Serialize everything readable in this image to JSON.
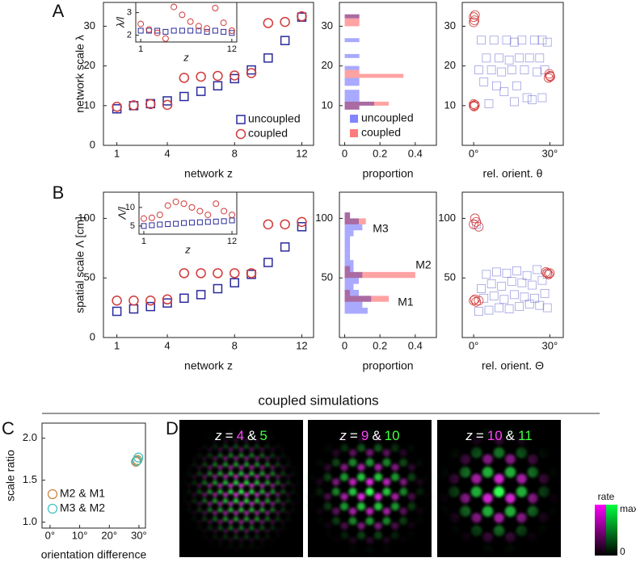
{
  "panel_labels": [
    "A",
    "B",
    "C",
    "D"
  ],
  "section_title": "coupled simulations",
  "chart_data": [
    {
      "type": "scatter",
      "xlabel": "network z",
      "ylabel": "network scale λ",
      "x": [
        1,
        2,
        3,
        4,
        5,
        6,
        7,
        8,
        9,
        10,
        11,
        12
      ],
      "xlim": [
        0.2,
        12.7
      ],
      "xticks": [
        1,
        4,
        8,
        12
      ],
      "ylim": [
        0,
        36
      ],
      "yticks": [
        0,
        10,
        20,
        30
      ],
      "legend": "lower right",
      "series": [
        {
          "name": "uncoupled",
          "color": "#2a2a9c",
          "marker": "square",
          "values": [
            9.2,
            10,
            10.5,
            11.2,
            12.3,
            13.6,
            15,
            16.8,
            19,
            22,
            26.4,
            32.3
          ]
        },
        {
          "name": "coupled",
          "color": "#d23a3a",
          "marker": "circle",
          "values": [
            9.7,
            10.1,
            10.4,
            10.2,
            17,
            17.3,
            17.5,
            17.6,
            18.2,
            30.8,
            31.1,
            32.5
          ]
        }
      ]
    },
    {
      "type": "scatter",
      "xlabel": "z",
      "ylabel": "λ/l",
      "x": [
        1,
        2,
        3,
        4,
        5,
        6,
        7,
        8,
        9,
        10,
        11,
        12
      ],
      "xlim": [
        0.4,
        12.6
      ],
      "xticks": [
        1,
        12
      ],
      "ylim": [
        1.7,
        3.45
      ],
      "yticks": [
        2,
        3
      ],
      "series": [
        {
          "name": "uncoupled",
          "color": "#2a2a9c",
          "marker": "square",
          "values": [
            2.2,
            2.2,
            2.2,
            2.15,
            2.2,
            2.2,
            2.2,
            2.2,
            2.15,
            2.2,
            2.15,
            2.1
          ]
        },
        {
          "name": "coupled",
          "color": "#d23a3a",
          "marker": "circle",
          "values": [
            2.5,
            2.25,
            2.1,
            1.85,
            3.25,
            2.9,
            2.6,
            2.4,
            2.3,
            3.2,
            2.55,
            2.2
          ]
        }
      ]
    },
    {
      "type": "histogram",
      "orientation": "horizontal",
      "xlabel": "proportion",
      "bins": [
        8,
        9,
        10,
        11,
        12,
        13,
        14,
        15,
        16,
        17,
        18,
        19,
        20,
        21,
        22,
        23,
        24,
        25,
        26,
        27,
        28,
        29,
        30,
        31,
        32,
        33,
        34
      ],
      "xlim": [
        -0.03,
        0.52
      ],
      "xticks": [
        0,
        0.2,
        0.4
      ],
      "ylim": [
        0,
        36
      ],
      "yticks": [
        10,
        20,
        30
      ],
      "legend": "lower right",
      "series": [
        {
          "name": "uncoupled",
          "color": "#8484ff",
          "values": [
            0,
            0.083,
            0.167,
            0.083,
            0.083,
            0.083,
            0,
            0.083,
            0.083,
            0,
            0,
            0.083,
            0,
            0,
            0.083,
            0,
            0,
            0,
            0.083,
            0,
            0,
            0,
            0,
            0,
            0.083,
            0
          ]
        },
        {
          "name": "coupled",
          "color": "#ff7a7a",
          "values": [
            0,
            0.083,
            0.25,
            0,
            0,
            0,
            0,
            0,
            0,
            0.333,
            0.083,
            0,
            0,
            0,
            0,
            0,
            0,
            0,
            0,
            0,
            0,
            0,
            0.083,
            0.083,
            0.083,
            0
          ]
        }
      ]
    },
    {
      "type": "scatter",
      "xlabel": "rel. orient. θ",
      "xlim": [
        -4.5,
        35.3
      ],
      "xticks": [
        {
          "value": 0,
          "label": "0°"
        },
        {
          "value": 30,
          "label": "30°"
        }
      ],
      "ylim": [
        0,
        36
      ],
      "yticks": [
        10,
        20,
        30
      ],
      "series": [
        {
          "name": "uncoupled",
          "color": "#5050c8",
          "marker": "square",
          "x": [
            3,
            8,
            13,
            16,
            19,
            24,
            27,
            29,
            5,
            10,
            14,
            18,
            22,
            26,
            2,
            7,
            11,
            15,
            20,
            25,
            28,
            4,
            9,
            12,
            17,
            21,
            23,
            6,
            16,
            27
          ],
          "values": [
            26.5,
            26.5,
            26.5,
            26,
            26.5,
            26.5,
            26.5,
            26,
            22,
            22,
            21.5,
            22,
            22,
            22,
            19,
            19,
            18.5,
            19,
            19,
            18.5,
            19,
            16,
            15,
            13.5,
            15,
            12,
            11.5,
            10.5,
            11,
            12
          ]
        },
        {
          "name": "coupled",
          "color": "#d23a3a",
          "marker": "circle",
          "x": [
            0,
            0.5,
            0,
            0.3,
            29.5,
            30,
            29.8,
            30.2,
            0,
            0.5,
            0.2,
            0
          ],
          "values": [
            32.3,
            32.8,
            31,
            31.5,
            17,
            17.5,
            18,
            17.3,
            10,
            10.2,
            9.8,
            10.4
          ]
        }
      ]
    },
    {
      "type": "scatter",
      "xlabel": "network z",
      "ylabel": "spatial scale Λ [cm]",
      "x": [
        1,
        2,
        3,
        4,
        5,
        6,
        7,
        8,
        9,
        10,
        11,
        12
      ],
      "xlim": [
        0.2,
        12.7
      ],
      "xticks": [
        1,
        4,
        8,
        12
      ],
      "ylim": [
        0,
        122
      ],
      "yticks": [
        0,
        50,
        100
      ],
      "series": [
        {
          "name": "uncoupled",
          "color": "#2a2a9c",
          "marker": "square",
          "values": [
            22,
            24,
            26,
            29,
            33,
            36,
            41,
            46,
            53,
            63,
            76,
            93
          ]
        },
        {
          "name": "coupled",
          "color": "#d23a3a",
          "marker": "circle",
          "values": [
            31,
            31,
            31,
            32,
            54,
            54,
            54,
            54,
            54,
            95,
            95,
            97
          ]
        }
      ]
    },
    {
      "type": "scatter",
      "xlabel": "z",
      "ylabel": "Λ/l",
      "x": [
        1,
        2,
        3,
        4,
        5,
        6,
        7,
        8,
        9,
        10,
        11,
        12
      ],
      "xlim": [
        0.4,
        12.6
      ],
      "xticks": [
        1,
        12
      ],
      "ylim": [
        2.8,
        14.1
      ],
      "yticks": [
        5,
        10
      ],
      "series": [
        {
          "name": "uncoupled",
          "color": "#2a2a9c",
          "marker": "square",
          "values": [
            5,
            5.2,
            5.4,
            5.5,
            5.6,
            5.8,
            5.9,
            6,
            6.1,
            6.2,
            6.3,
            6.5
          ]
        },
        {
          "name": "coupled",
          "color": "#d23a3a",
          "marker": "circle",
          "values": [
            7,
            7.2,
            8,
            10.5,
            11.5,
            11,
            10,
            9,
            8,
            11,
            9,
            8
          ]
        }
      ]
    },
    {
      "type": "histogram",
      "orientation": "horizontal",
      "xlabel": "proportion",
      "bins": [
        15,
        20,
        25,
        30,
        35,
        40,
        45,
        50,
        55,
        60,
        65,
        70,
        75,
        80,
        85,
        90,
        95,
        100,
        105
      ],
      "xlim": [
        -0.03,
        0.52
      ],
      "xticks": [
        0,
        0.2,
        0.4
      ],
      "ylim": [
        0,
        122
      ],
      "yticks": [
        50,
        100
      ],
      "annotations": [
        "M3",
        "M2",
        "M1"
      ],
      "series": [
        {
          "name": "uncoupled",
          "color": "#8484ff",
          "values": [
            0,
            0.13,
            0.1,
            0.15,
            0.08,
            0.05,
            0.08,
            0.1,
            0.05,
            0.05,
            0.03,
            0.03,
            0.03,
            0.03,
            0.05,
            0.1,
            0.08,
            0.03
          ]
        },
        {
          "name": "coupled",
          "color": "#ff7a7a",
          "values": [
            0,
            0,
            0,
            0.25,
            0.03,
            0,
            0,
            0.4,
            0.03,
            0,
            0,
            0,
            0,
            0,
            0,
            0,
            0.12,
            0.03
          ]
        }
      ]
    },
    {
      "type": "scatter",
      "xlabel": "rel. orient. Θ",
      "xlim": [
        -4.5,
        35.3
      ],
      "xticks": [
        {
          "value": 0,
          "label": "0°"
        },
        {
          "value": 30,
          "label": "30°"
        }
      ],
      "ylim": [
        0,
        122
      ],
      "yticks": [
        50,
        100
      ],
      "series": [
        {
          "name": "uncoupled",
          "color": "#5050c8",
          "marker": "square",
          "x": [
            2,
            6,
            10,
            14,
            18,
            22,
            26,
            29,
            4,
            8,
            12,
            16,
            20,
            24,
            28,
            3,
            7,
            11,
            15,
            19,
            23,
            27,
            5,
            9,
            13,
            17,
            21,
            25,
            29,
            1
          ],
          "values": [
            22,
            23,
            25,
            24,
            26,
            28,
            27,
            25,
            33,
            35,
            32,
            36,
            34,
            33,
            37,
            41,
            45,
            43,
            47,
            46,
            44,
            48,
            53,
            55,
            54,
            56,
            52,
            57,
            53,
            95
          ]
        },
        {
          "name": "coupled",
          "color": "#d23a3a",
          "marker": "circle",
          "x": [
            0,
            1,
            2,
            0.5,
            29,
            28.5,
            29.5,
            30,
            0,
            1,
            2,
            0.5
          ],
          "values": [
            31,
            30,
            31,
            32,
            54,
            55,
            53,
            54,
            95,
            97,
            93,
            100
          ]
        }
      ]
    },
    {
      "type": "scatter",
      "xlabel": "orientation difference",
      "ylabel": "scale ratio",
      "xlim": [
        -2.7,
        32.2
      ],
      "xticks": [
        {
          "value": 0,
          "label": "0°"
        },
        {
          "value": 10,
          "label": "10°"
        },
        {
          "value": 20,
          "label": "20°"
        },
        {
          "value": 30,
          "label": "30°"
        }
      ],
      "ylim": [
        0.93,
        2.18
      ],
      "yticks": [
        {
          "value": 1,
          "label": "1.0"
        },
        1.5,
        {
          "value": 2,
          "label": "2.0"
        }
      ],
      "legend": "lower left",
      "series": [
        {
          "name": "M2 & M1",
          "color": "#c8803a",
          "marker": "circle",
          "x": [
            29,
            29.5
          ],
          "values": [
            1.72,
            1.74
          ]
        },
        {
          "name": "M3 & M2",
          "color": "#3fbfbf",
          "marker": "circle",
          "x": [
            29.2,
            29.8
          ],
          "values": [
            1.73,
            1.77
          ]
        }
      ]
    }
  ],
  "panel_d": {
    "images": [
      {
        "parts": [
          "z",
          "=",
          "4",
          "&",
          "5"
        ]
      },
      {
        "parts": [
          "z",
          "=",
          "9",
          "&",
          "10"
        ]
      },
      {
        "parts": [
          "z",
          "=",
          "10",
          "&",
          "11"
        ]
      }
    ],
    "colorbar": {
      "title": "rate",
      "max_label": "max.",
      "min_label": "0"
    }
  }
}
